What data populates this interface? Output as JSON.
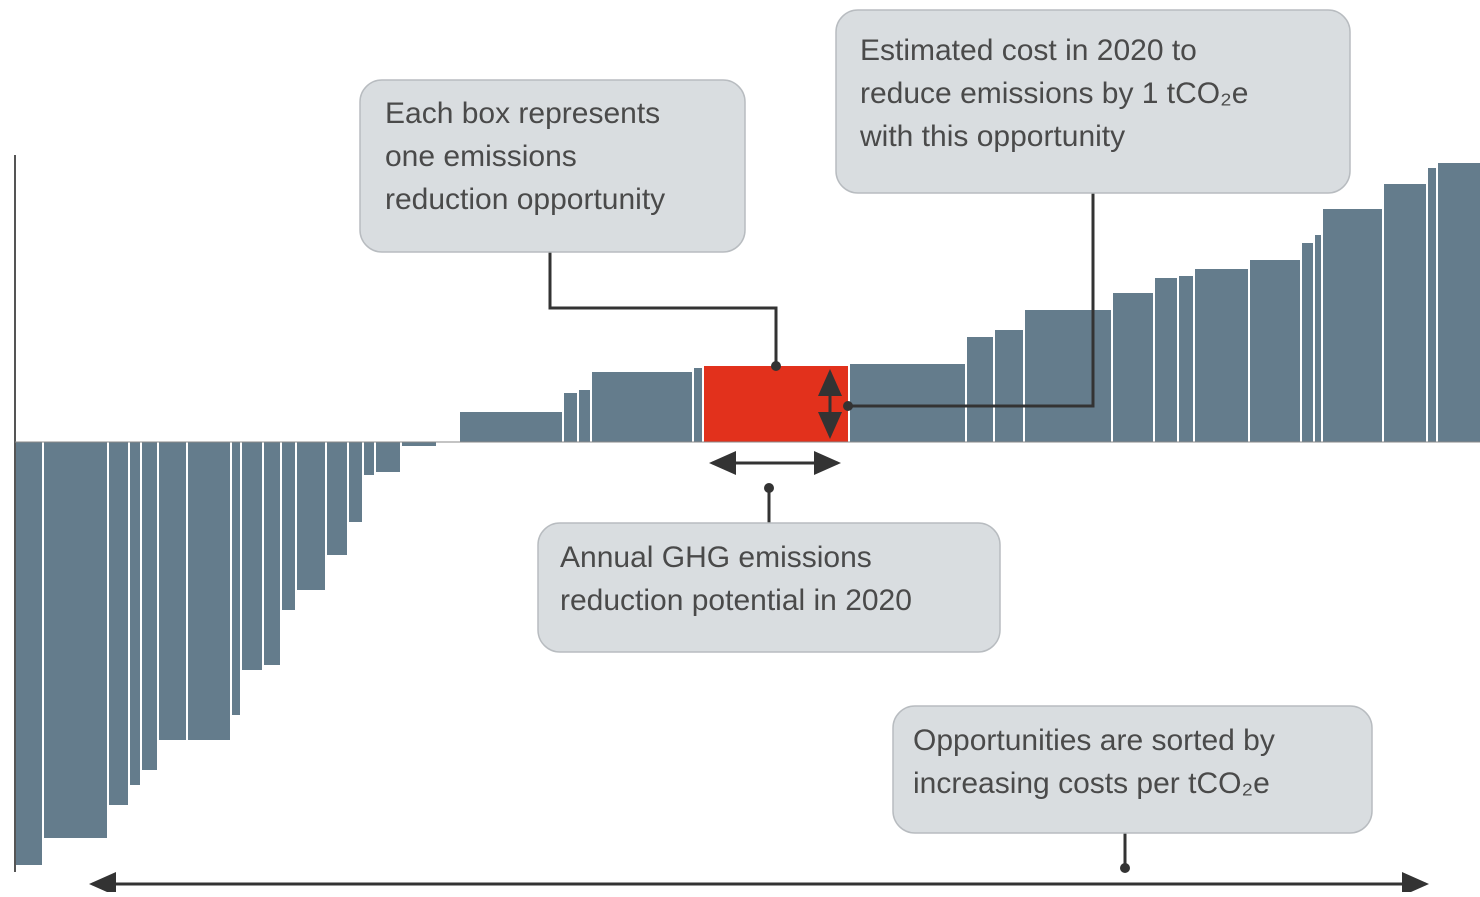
{
  "callouts": [
    {
      "lines": [
        "Each box represents",
        "one emissions",
        "reduction opportunity"
      ]
    },
    {
      "lines": [
        "Estimated cost in 2020 to",
        "reduce emissions by 1 tCO₂e",
        "with this opportunity"
      ]
    },
    {
      "lines": [
        "Annual GHG emissions",
        "reduction potential in 2020"
      ]
    },
    {
      "lines": [
        "Opportunities are sorted by",
        "increasing costs per tCO₂e"
      ]
    }
  ]
}
